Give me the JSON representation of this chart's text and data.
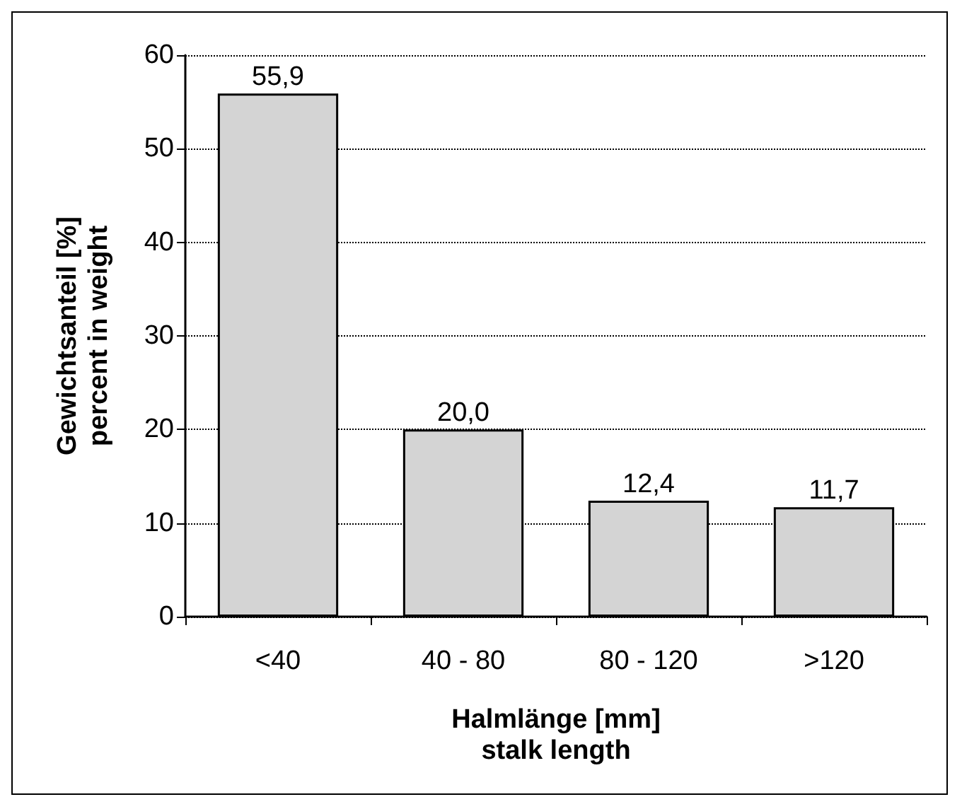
{
  "chart_data": {
    "type": "bar",
    "xlabel": "Halmlänge [mm]\nstalk length",
    "ylabel": "Gewichtsanteil [%]\npercent in weight",
    "categories": [
      "<40",
      "40 - 80",
      "80 - 120",
      ">120"
    ],
    "values": [
      55.9,
      20.0,
      12.4,
      11.7
    ],
    "value_labels": [
      "55,9",
      "20,0",
      "12,4",
      "11,7"
    ],
    "color": "#d4d4d4",
    "ylim": [
      0,
      60
    ],
    "yticks": [
      0,
      10,
      20,
      30,
      40,
      50,
      60
    ],
    "grid": "y"
  }
}
